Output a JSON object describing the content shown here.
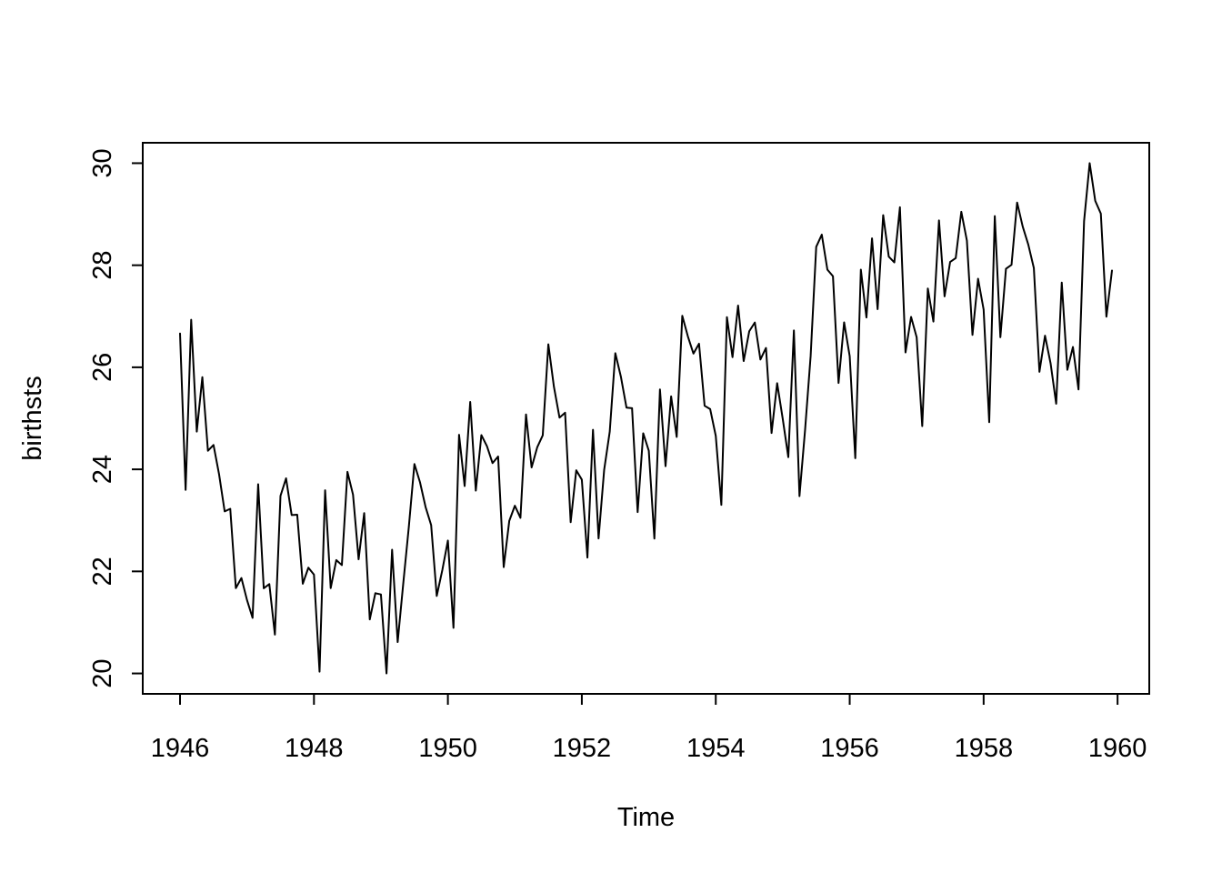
{
  "chart_data": {
    "type": "line",
    "title": "",
    "xlabel": "Time",
    "ylabel": "birthsts",
    "series_name": "birthsts",
    "x_start": 1946,
    "frequency": 12,
    "x_ticks": [
      1946,
      1948,
      1950,
      1952,
      1954,
      1956,
      1958,
      1960
    ],
    "y_ticks": [
      20,
      22,
      24,
      26,
      28,
      30
    ],
    "xlim": [
      1945.4433,
      1960.4733
    ],
    "ylim": [
      19.6,
      30.4
    ],
    "grid": false,
    "legend": "none",
    "line_color": "#000000",
    "background_color": "#ffffff",
    "values": [
      26.663,
      23.598,
      26.931,
      24.74,
      25.806,
      24.364,
      24.477,
      23.901,
      23.175,
      23.227,
      21.672,
      21.87,
      21.439,
      21.089,
      23.709,
      21.669,
      21.752,
      20.761,
      23.479,
      23.824,
      23.105,
      23.11,
      21.759,
      22.073,
      21.937,
      20.035,
      23.59,
      21.672,
      22.222,
      22.123,
      23.95,
      23.504,
      22.238,
      23.142,
      21.059,
      21.573,
      21.548,
      20.0,
      22.424,
      20.615,
      21.761,
      22.874,
      24.104,
      23.748,
      23.262,
      22.907,
      21.519,
      22.025,
      22.604,
      20.894,
      24.677,
      23.673,
      25.32,
      23.583,
      24.671,
      24.454,
      24.122,
      24.252,
      22.084,
      22.991,
      23.287,
      23.049,
      25.076,
      24.037,
      24.43,
      24.667,
      26.451,
      25.618,
      25.014,
      25.11,
      22.964,
      23.981,
      23.798,
      22.27,
      24.775,
      22.646,
      23.988,
      24.737,
      26.276,
      25.816,
      25.21,
      25.199,
      23.162,
      24.707,
      24.364,
      22.644,
      25.565,
      24.062,
      25.431,
      24.635,
      27.009,
      26.606,
      26.268,
      26.462,
      25.246,
      25.18,
      24.657,
      23.304,
      26.982,
      26.199,
      27.21,
      26.122,
      26.706,
      26.878,
      26.152,
      26.379,
      24.712,
      25.688,
      24.99,
      24.239,
      26.721,
      23.475,
      24.767,
      26.219,
      28.361,
      28.599,
      27.914,
      27.784,
      25.693,
      26.881,
      26.217,
      24.218,
      27.914,
      26.975,
      28.527,
      27.139,
      28.982,
      28.169,
      28.056,
      29.136,
      26.291,
      26.987,
      26.589,
      24.848,
      27.543,
      26.896,
      28.878,
      27.39,
      28.065,
      28.141,
      29.048,
      28.484,
      26.634,
      27.735,
      27.132,
      24.924,
      28.963,
      26.589,
      27.931,
      28.009,
      29.229,
      28.759,
      28.405,
      27.945,
      25.912,
      26.619,
      26.076,
      25.286,
      27.66,
      25.951,
      26.398,
      25.565,
      28.865,
      30.0,
      29.261,
      29.012,
      26.992,
      27.897
    ]
  }
}
